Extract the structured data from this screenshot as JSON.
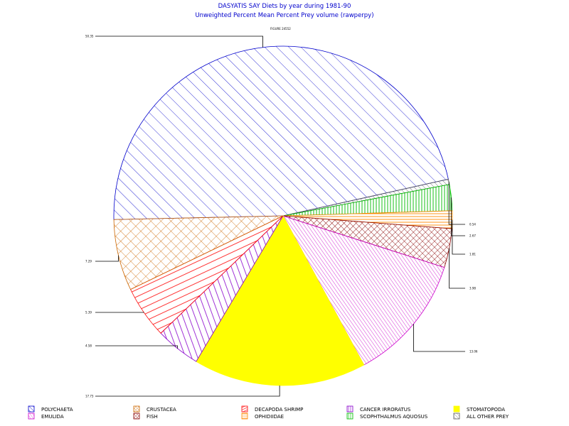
{
  "chart_data": {
    "type": "pie",
    "title": "DASYATIS SAY Diets by year during 1981-90",
    "subtitle": "Unweighted Percent Mean Percent Prey  volume (rawperpy)",
    "header_label": "FIGURE 24552",
    "slices": [
      {
        "name": "POLYCHAETA",
        "value": 50.35,
        "label": "50.35",
        "color": "#0000cc",
        "pattern": "diag-wide"
      },
      {
        "name": "ALL OTHER PREY",
        "value": 0.54,
        "label": "0.54",
        "color": "#555555",
        "pattern": "diag-wide"
      },
      {
        "name": "SCOPHTHALMUS AQUOSUS",
        "value": 2.67,
        "label": "2.67",
        "color": "#00bb00",
        "pattern": "vert"
      },
      {
        "name": "OPHIDIIDAE",
        "value": 1.81,
        "label": "1.81",
        "color": "#ff8800",
        "pattern": "horiz"
      },
      {
        "name": "FISH",
        "value": 3.98,
        "label": "3.98",
        "color": "#880000",
        "pattern": "cross"
      },
      {
        "name": "EMULIDA",
        "value": 13.06,
        "label": "13.06",
        "color": "#cc00cc",
        "pattern": "diag-dense"
      },
      {
        "name": "STOMATOPODA",
        "value": 17.73,
        "label": "17.73",
        "color": "#ffff00",
        "pattern": "solid"
      },
      {
        "name": "CANCER IRRORATUS",
        "value": 4.58,
        "label": "4.58",
        "color": "#8800cc",
        "pattern": "vert"
      },
      {
        "name": "DECAPODA SHRIMP",
        "value": 5.39,
        "label": "5.39",
        "color": "#ff0000",
        "pattern": "diag-rev"
      },
      {
        "name": "CRUSTACEA",
        "value": 7.29,
        "label": "7.29",
        "color": "#cc6600",
        "pattern": "cross"
      }
    ]
  },
  "legend": [
    {
      "label": "POLYCHAETA",
      "color": "#0000cc",
      "pattern": "diag-wide"
    },
    {
      "label": "CRUSTACEA",
      "color": "#cc6600",
      "pattern": "cross"
    },
    {
      "label": "DECAPODA SHRIMP",
      "color": "#ff0000",
      "pattern": "diag-rev"
    },
    {
      "label": "CANCER IRRORATUS",
      "color": "#8800cc",
      "pattern": "vert"
    },
    {
      "label": "STOMATOPODA",
      "color": "#ffff00",
      "pattern": "solid"
    },
    {
      "label": "EMULIDA",
      "color": "#cc00cc",
      "pattern": "diag-dense"
    },
    {
      "label": "FISH",
      "color": "#880000",
      "pattern": "cross"
    },
    {
      "label": "OPHIDIIDAE",
      "color": "#ff8800",
      "pattern": "horiz"
    },
    {
      "label": "SCOPHTHALMUS AQUOSUS",
      "color": "#00bb00",
      "pattern": "vert"
    },
    {
      "label": "ALL OTHER PREY",
      "color": "#555555",
      "pattern": "diag-wide"
    }
  ]
}
